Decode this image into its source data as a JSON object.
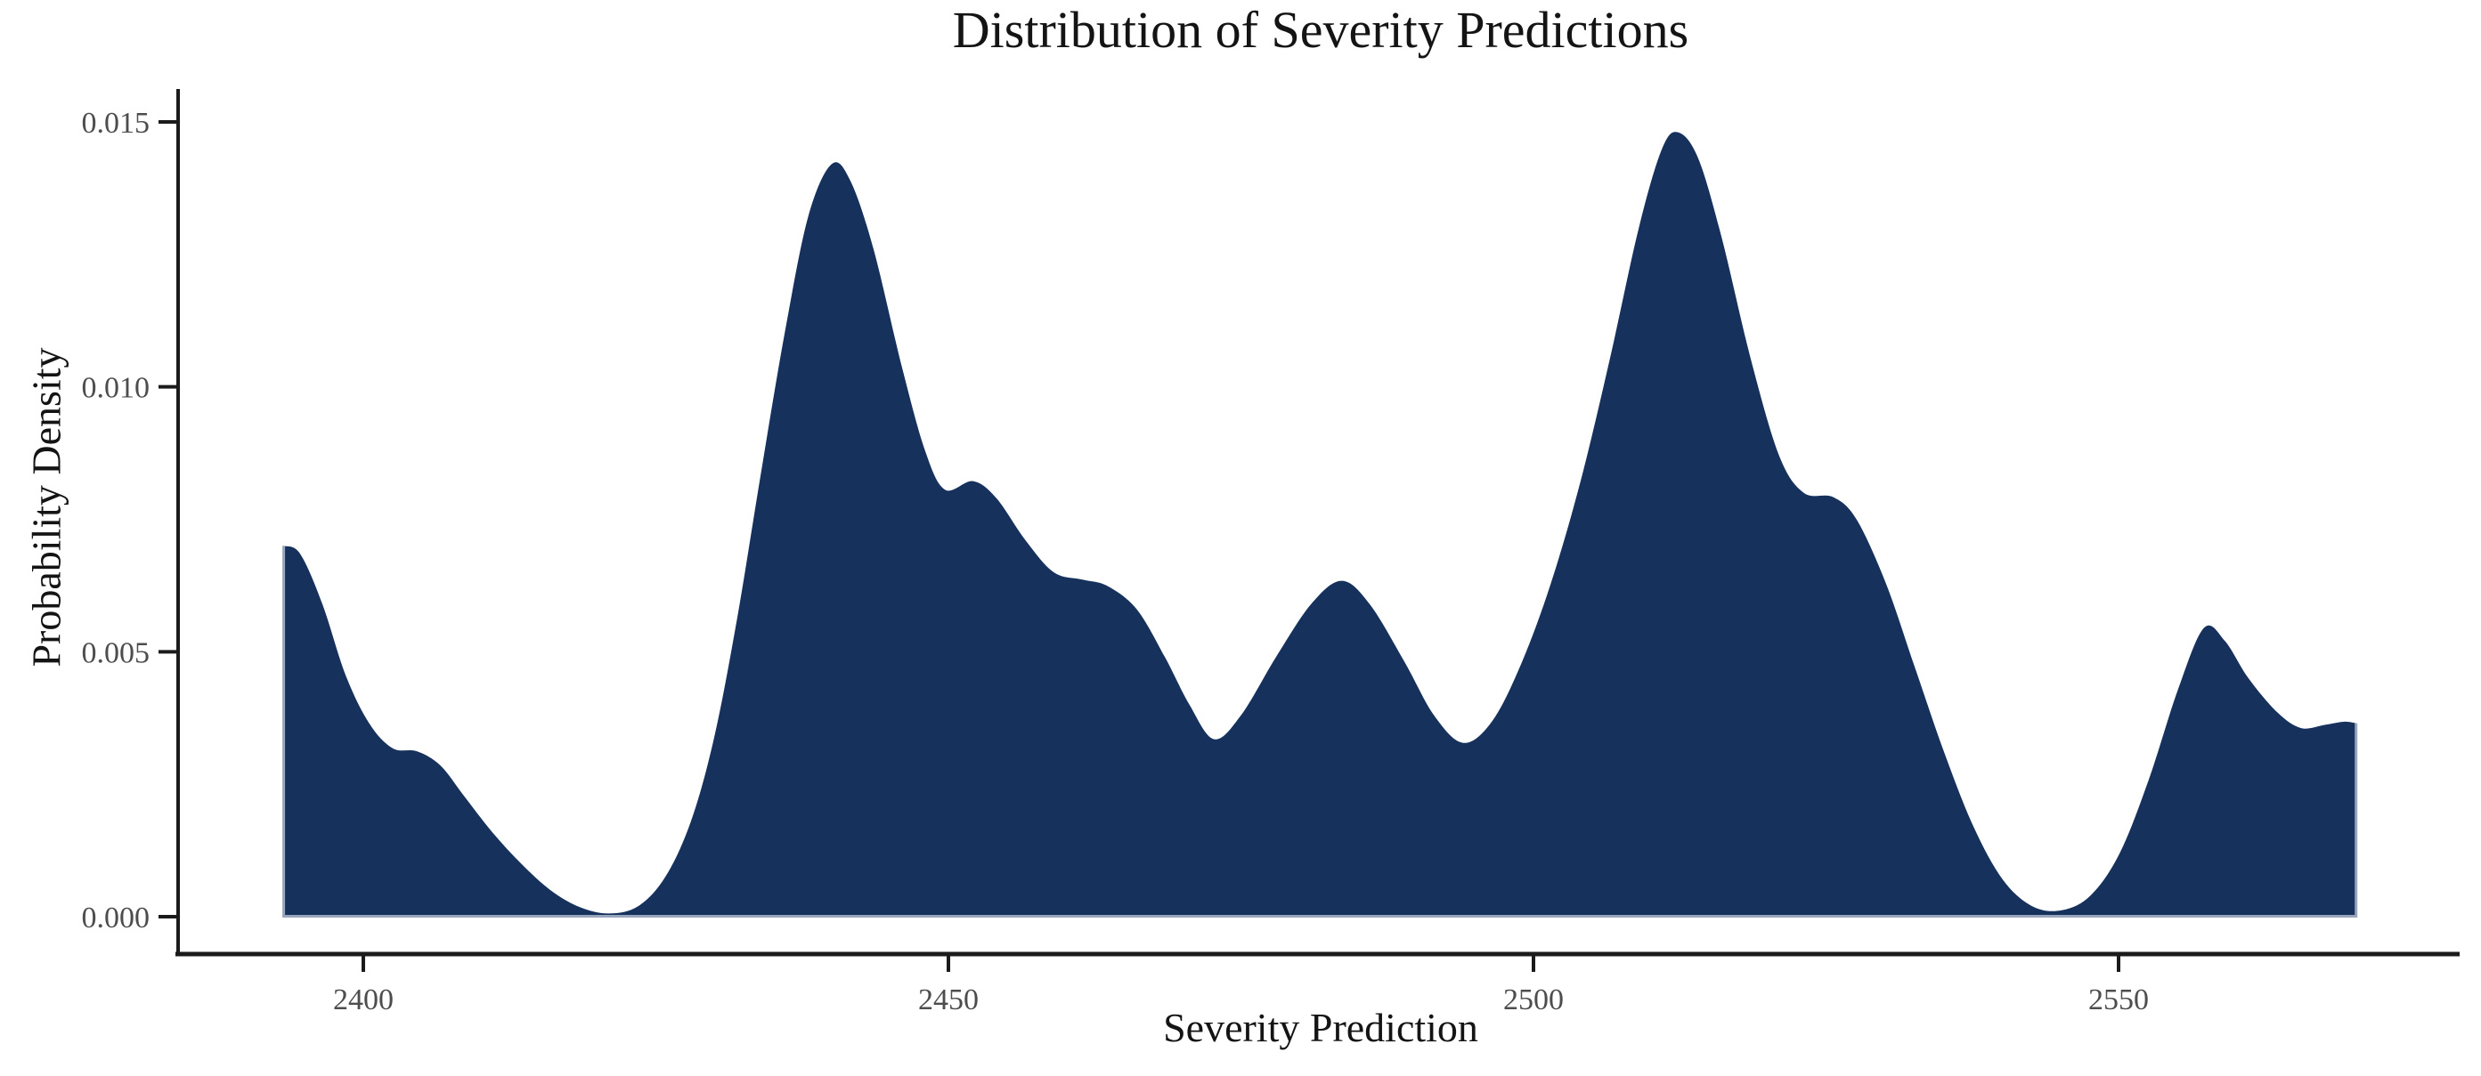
{
  "chart": {
    "title": "Distribution of Severity Predictions",
    "xlabel": "Severity Prediction",
    "ylabel": "Probability Density"
  },
  "colors": {
    "fill": "#16315B",
    "baseline_stroke": "#97A6BC",
    "spine": "#1b1b1b",
    "tick_label": "#4d4d4d",
    "text": "#141414",
    "background": "#ffffff"
  },
  "chart_data": {
    "type": "area",
    "title": "Distribution of Severity Predictions",
    "xlabel": "Severity Prediction",
    "ylabel": "Probability Density",
    "xlim": [
      2384,
      2580
    ],
    "ylim": [
      0,
      0.0156
    ],
    "grid": false,
    "legend": false,
    "x_ticks": [
      {
        "value": 2400,
        "label": "2400"
      },
      {
        "value": 2450,
        "label": "2450"
      },
      {
        "value": 2500,
        "label": "2500"
      },
      {
        "value": 2550,
        "label": "2550"
      }
    ],
    "y_ticks": [
      {
        "value": 0.0,
        "label": "0.000"
      },
      {
        "value": 0.005,
        "label": "0.005"
      },
      {
        "value": 0.01,
        "label": "0.010"
      },
      {
        "value": 0.015,
        "label": "0.015"
      }
    ],
    "series": [
      {
        "name": "severity-prediction-density",
        "points": [
          [
            2393.2,
            0.007
          ],
          [
            2394.6,
            0.00685
          ],
          [
            2396.5,
            0.0059
          ],
          [
            2398.5,
            0.00455
          ],
          [
            2400.5,
            0.00365
          ],
          [
            2402.5,
            0.00318
          ],
          [
            2404.6,
            0.00312
          ],
          [
            2406.6,
            0.00285
          ],
          [
            2408.6,
            0.00228
          ],
          [
            2411.0,
            0.0016
          ],
          [
            2413.5,
            0.001
          ],
          [
            2416.0,
            0.0005
          ],
          [
            2418.5,
            0.00018
          ],
          [
            2421.0,
            6e-05
          ],
          [
            2423.5,
            0.0002
          ],
          [
            2425.8,
            0.00075
          ],
          [
            2428.0,
            0.0018
          ],
          [
            2430.0,
            0.0034
          ],
          [
            2432.0,
            0.0057
          ],
          [
            2434.0,
            0.0084
          ],
          [
            2436.0,
            0.011
          ],
          [
            2438.0,
            0.0132
          ],
          [
            2440.0,
            0.0142
          ],
          [
            2441.6,
            0.0139
          ],
          [
            2443.6,
            0.0126
          ],
          [
            2446.0,
            0.0104
          ],
          [
            2448.0,
            0.0088
          ],
          [
            2449.7,
            0.00806
          ],
          [
            2452.1,
            0.00822
          ],
          [
            2454.1,
            0.0079
          ],
          [
            2456.6,
            0.0071
          ],
          [
            2459.0,
            0.0065
          ],
          [
            2461.5,
            0.00636
          ],
          [
            2463.6,
            0.00624
          ],
          [
            2466.1,
            0.0058
          ],
          [
            2468.5,
            0.0049
          ],
          [
            2470.6,
            0.004
          ],
          [
            2472.7,
            0.00335
          ],
          [
            2475.0,
            0.0038
          ],
          [
            2478.0,
            0.0049
          ],
          [
            2481.0,
            0.0059
          ],
          [
            2483.6,
            0.00634
          ],
          [
            2486.0,
            0.0059
          ],
          [
            2489.0,
            0.0048
          ],
          [
            2491.5,
            0.0038
          ],
          [
            2494.0,
            0.00328
          ],
          [
            2496.5,
            0.0037
          ],
          [
            2499.0,
            0.0048
          ],
          [
            2501.5,
            0.0063
          ],
          [
            2504.0,
            0.0082
          ],
          [
            2506.5,
            0.0105
          ],
          [
            2509.0,
            0.013
          ],
          [
            2511.0,
            0.0145
          ],
          [
            2512.4,
            0.0148
          ],
          [
            2514.1,
            0.0143
          ],
          [
            2516.1,
            0.0128
          ],
          [
            2518.6,
            0.0105
          ],
          [
            2521.0,
            0.0087
          ],
          [
            2523.1,
            0.008
          ],
          [
            2525.6,
            0.00792
          ],
          [
            2527.6,
            0.0075
          ],
          [
            2530.1,
            0.0063
          ],
          [
            2532.6,
            0.0047
          ],
          [
            2535.1,
            0.0031
          ],
          [
            2537.6,
            0.0017
          ],
          [
            2540.1,
            0.0007
          ],
          [
            2542.6,
            0.0002
          ],
          [
            2545.1,
            0.00012
          ],
          [
            2547.6,
            0.0004
          ],
          [
            2550.1,
            0.0012
          ],
          [
            2552.6,
            0.0026
          ],
          [
            2555.1,
            0.0043
          ],
          [
            2557.3,
            0.00545
          ],
          [
            2559.1,
            0.0052
          ],
          [
            2561.1,
            0.0045
          ],
          [
            2563.6,
            0.00385
          ],
          [
            2565.6,
            0.00356
          ],
          [
            2567.6,
            0.00362
          ],
          [
            2569.3,
            0.00368
          ],
          [
            2570.3,
            0.00365
          ]
        ]
      }
    ]
  }
}
